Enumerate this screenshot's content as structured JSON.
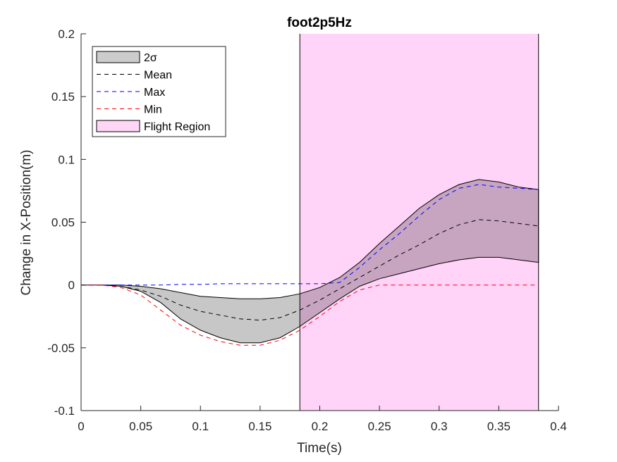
{
  "chart_data": {
    "type": "line",
    "title": "foot2p5Hz",
    "xlabel": "Time(s)",
    "ylabel": "Change in X-Position(m)",
    "xlim": [
      0,
      0.4
    ],
    "ylim": [
      -0.1,
      0.2
    ],
    "xticks": [
      0,
      0.05,
      0.1,
      0.15,
      0.2,
      0.25,
      0.3,
      0.35,
      0.4
    ],
    "xtick_labels": [
      "0",
      "0.05",
      "0.1",
      "0.15",
      "0.2",
      "0.25",
      "0.3",
      "0.35",
      "0.4"
    ],
    "yticks": [
      -0.1,
      -0.05,
      0,
      0.05,
      0.1,
      0.15,
      0.2
    ],
    "ytick_labels": [
      "-0.1",
      "-0.05",
      "0",
      "0.05",
      "0.1",
      "0.15",
      "0.2"
    ],
    "grid": false,
    "legend_position": "top-left",
    "x": [
      0,
      0.0167,
      0.0333,
      0.05,
      0.0667,
      0.0833,
      0.1,
      0.1167,
      0.1333,
      0.15,
      0.1667,
      0.1833,
      0.2,
      0.2167,
      0.2333,
      0.25,
      0.2667,
      0.2833,
      0.3,
      0.3167,
      0.3333,
      0.35,
      0.3667,
      0.3833
    ],
    "band": {
      "name": "2σ",
      "color": "#000000",
      "opacity": 0.22,
      "upper": [
        0,
        0,
        0,
        -0.001,
        -0.003,
        -0.006,
        -0.009,
        -0.01,
        -0.011,
        -0.011,
        -0.01,
        -0.007,
        -0.002,
        0.006,
        0.018,
        0.033,
        0.047,
        0.061,
        0.072,
        0.08,
        0.084,
        0.082,
        0.078,
        0.076
      ],
      "lower": [
        0,
        0,
        -0.001,
        -0.005,
        -0.014,
        -0.027,
        -0.036,
        -0.042,
        -0.046,
        -0.046,
        -0.042,
        -0.033,
        -0.022,
        -0.011,
        -0.001,
        0.005,
        0.009,
        0.013,
        0.017,
        0.02,
        0.022,
        0.022,
        0.02,
        0.018
      ]
    },
    "series": [
      {
        "name": "Mean",
        "color": "#000000",
        "dash": "6,5",
        "values": [
          0,
          0,
          -0.001,
          -0.004,
          -0.009,
          -0.016,
          -0.021,
          -0.024,
          -0.027,
          -0.028,
          -0.026,
          -0.02,
          -0.012,
          -0.003,
          0.006,
          0.015,
          0.024,
          0.032,
          0.041,
          0.048,
          0.052,
          0.051,
          0.049,
          0.047
        ]
      },
      {
        "name": "Max",
        "color": "#0000ff",
        "dash": "6,5",
        "values": [
          0,
          0,
          0,
          0,
          0,
          0.0005,
          0.0005,
          0.001,
          0.001,
          0.001,
          0.001,
          0.001,
          0.001,
          0.002,
          0.014,
          0.028,
          0.041,
          0.055,
          0.068,
          0.077,
          0.08,
          0.078,
          0.077,
          0.076
        ]
      },
      {
        "name": "Min",
        "color": "#ff0000",
        "dash": "6,5",
        "values": [
          0,
          0,
          -0.002,
          -0.008,
          -0.02,
          -0.032,
          -0.04,
          -0.045,
          -0.048,
          -0.048,
          -0.044,
          -0.036,
          -0.025,
          -0.013,
          -0.004,
          0,
          0,
          0,
          0,
          0,
          0,
          0,
          0,
          0
        ]
      }
    ],
    "flight_region": {
      "name": "Flight Region",
      "x_start": 0.1833,
      "x_end": 0.3833,
      "color": "#ff00d4",
      "opacity": 0.17
    },
    "legend": [
      "2σ",
      "Mean",
      "Max",
      "Min",
      "Flight Region"
    ]
  }
}
